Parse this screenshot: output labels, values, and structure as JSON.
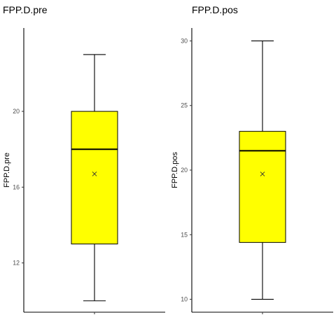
{
  "chart_data": [
    {
      "type": "box",
      "title": "FPP.D.pre",
      "xlabel": "",
      "ylabel": "FPP.D.pre",
      "ylim": [
        9.4,
        24.4
      ],
      "yticks": [
        12,
        16,
        20
      ],
      "grid": false,
      "box_color": "#ffff00",
      "stats": {
        "min": 10,
        "q1": 13,
        "median": 18,
        "q3": 20,
        "max": 23,
        "mean": 16.7
      }
    },
    {
      "type": "box",
      "title": "FPP.D.pos",
      "xlabel": "",
      "ylabel": "FPP.D.pos",
      "ylim": [
        9.0,
        31.0
      ],
      "yticks": [
        10,
        15,
        20,
        25,
        30
      ],
      "grid": false,
      "box_color": "#ffff00",
      "stats": {
        "min": 10,
        "q1": 14.4,
        "median": 21.5,
        "q3": 23,
        "max": 30,
        "mean": 19.7
      }
    }
  ]
}
